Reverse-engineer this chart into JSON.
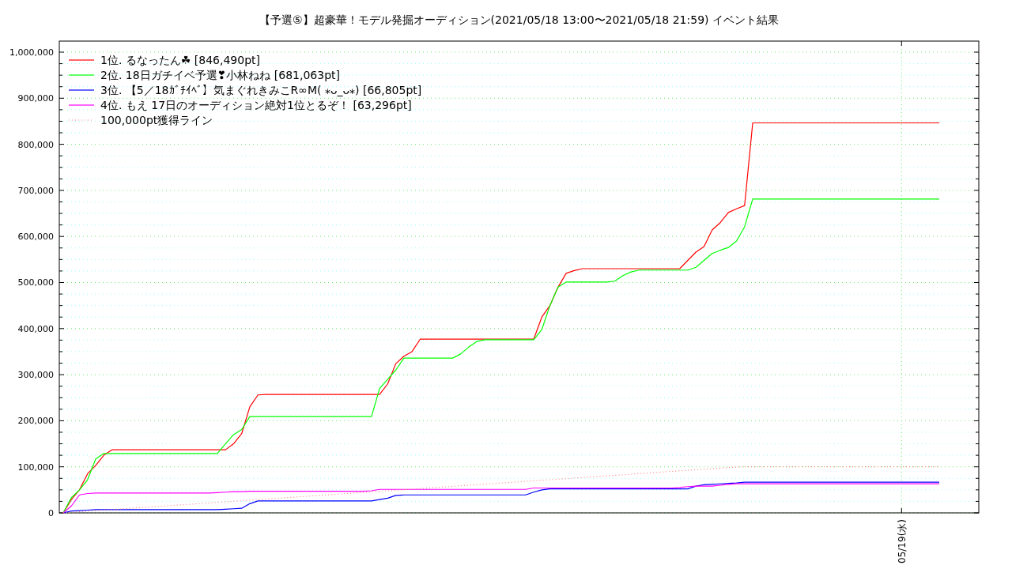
{
  "chart_data": {
    "type": "line",
    "title": "【予選⑤】超豪華！モデル発掘オーディション(2021/05/18 13:00〜2021/05/18 21:59)          イベント結果",
    "annotations": [
      "05/19(水)"
    ],
    "categories": [
      null,
      null,
      null,
      null,
      null,
      null,
      null,
      null,
      null,
      null,
      null,
      null,
      null,
      null,
      null,
      null,
      null,
      null,
      null,
      null,
      null,
      null,
      null,
      null,
      null,
      null,
      null,
      null,
      null,
      null,
      null,
      null,
      null,
      null,
      null,
      null,
      null,
      null,
      null,
      null,
      null,
      null,
      null,
      null,
      null,
      null,
      null,
      null,
      null,
      null,
      null,
      null,
      null,
      null,
      null,
      null,
      null,
      null,
      null,
      null,
      null,
      null,
      null,
      null,
      null,
      null,
      null,
      null,
      null,
      null,
      null,
      null,
      null,
      null,
      null,
      null,
      null,
      null,
      null,
      null,
      null,
      null,
      null,
      null,
      null,
      null,
      null,
      null,
      null,
      null,
      null,
      null,
      null,
      null,
      null,
      null,
      null,
      null,
      null,
      null,
      null,
      null,
      null,
      null,
      null,
      null,
      null,
      null,
      null
    ],
    "ylim": [
      0,
      1024000
    ],
    "yticks": [
      {
        "value": 0,
        "label": "0"
      },
      {
        "value": 25000,
        "label": null
      },
      {
        "value": 50000,
        "label": null
      },
      {
        "value": 75000,
        "label": null
      },
      {
        "value": 100000,
        "label": "100,000"
      },
      {
        "value": 125000,
        "label": null
      },
      {
        "value": 150000,
        "label": null
      },
      {
        "value": 175000,
        "label": null
      },
      {
        "value": 200000,
        "label": "200,000"
      },
      {
        "value": 225000,
        "label": null
      },
      {
        "value": 250000,
        "label": null
      },
      {
        "value": 275000,
        "label": null
      },
      {
        "value": 300000,
        "label": "300,000"
      },
      {
        "value": 325000,
        "label": null
      },
      {
        "value": 350000,
        "label": null
      },
      {
        "value": 375000,
        "label": null
      },
      {
        "value": 400000,
        "label": "400,000"
      },
      {
        "value": 425000,
        "label": null
      },
      {
        "value": 450000,
        "label": null
      },
      {
        "value": 475000,
        "label": null
      },
      {
        "value": 500000,
        "label": "500,000"
      },
      {
        "value": 525000,
        "label": null
      },
      {
        "value": 550000,
        "label": null
      },
      {
        "value": 575000,
        "label": null
      },
      {
        "value": 600000,
        "label": "600,000"
      },
      {
        "value": 625000,
        "label": null
      },
      {
        "value": 650000,
        "label": null
      },
      {
        "value": 675000,
        "label": null
      },
      {
        "value": 700000,
        "label": "700,000"
      },
      {
        "value": 725000,
        "label": null
      },
      {
        "value": 750000,
        "label": null
      },
      {
        "value": 775000,
        "label": null
      },
      {
        "value": 800000,
        "label": "800,000"
      },
      {
        "value": 825000,
        "label": null
      },
      {
        "value": 850000,
        "label": null
      },
      {
        "value": 875000,
        "label": null
      },
      {
        "value": 900000,
        "label": "900,000"
      },
      {
        "value": 925000,
        "label": null
      },
      {
        "value": 950000,
        "label": null
      },
      {
        "value": 975000,
        "label": null
      },
      {
        "value": 1000000,
        "label": "1,000,000"
      }
    ],
    "grid": true,
    "legend": "top left",
    "series": [
      {
        "name": "1位. るなったん☘ [846,490pt]",
        "color": "#ff0000",
        "line_style": "solid",
        "values": [
          0,
          29000,
          50000,
          85000,
          103000,
          125000,
          137000,
          137000,
          137000,
          137000,
          137000,
          137000,
          137000,
          137000,
          137000,
          137000,
          137000,
          137000,
          137000,
          137000,
          137000,
          150000,
          172000,
          230000,
          256000,
          257000,
          257000,
          257000,
          257000,
          257000,
          257000,
          257000,
          257000,
          257000,
          257000,
          257000,
          257000,
          257000,
          257000,
          257000,
          280000,
          324000,
          340000,
          350000,
          377000,
          377000,
          377000,
          377000,
          377000,
          377000,
          377000,
          377000,
          377000,
          377000,
          377000,
          377000,
          377000,
          377000,
          377000,
          425000,
          450000,
          490000,
          520000,
          526000,
          530000,
          530000,
          530000,
          530000,
          530000,
          530000,
          530000,
          530000,
          530000,
          530000,
          530000,
          530000,
          530000,
          548000,
          566000,
          578000,
          614000,
          630000,
          652000,
          660000,
          667000,
          846490,
          846490,
          846490,
          846490,
          846490,
          846490,
          846490,
          846490,
          846490,
          846490,
          846490,
          846490,
          846490,
          846490,
          846490,
          846490,
          846490,
          846490,
          846490,
          846490,
          846490,
          846490,
          846490,
          846490
        ]
      },
      {
        "name": "2位. 18日ガチイベ予選❣小林ねね [681,063pt]",
        "color": "#00ff00",
        "line_style": "solid",
        "values": [
          0,
          33000,
          50000,
          72000,
          117000,
          129000,
          129000,
          129000,
          129000,
          129000,
          129000,
          129000,
          129000,
          129000,
          129000,
          129000,
          129000,
          129000,
          129000,
          129000,
          150000,
          170000,
          181000,
          209000,
          209000,
          209000,
          209000,
          209000,
          209000,
          209000,
          209000,
          209000,
          209000,
          209000,
          209000,
          209000,
          209000,
          209000,
          209000,
          270000,
          290000,
          310000,
          336000,
          336000,
          336000,
          336000,
          336000,
          336000,
          336000,
          345000,
          360000,
          372000,
          376000,
          376000,
          376000,
          376000,
          376000,
          376000,
          376000,
          398000,
          450000,
          490000,
          501000,
          501000,
          501000,
          501000,
          501000,
          501000,
          503000,
          515000,
          523000,
          527000,
          527000,
          527000,
          527000,
          527000,
          527000,
          527000,
          533000,
          548000,
          563000,
          570000,
          576000,
          590000,
          621000,
          681063,
          681063,
          681063,
          681063,
          681063,
          681063,
          681063,
          681063,
          681063,
          681063,
          681063,
          681063,
          681063,
          681063,
          681063,
          681063,
          681063,
          681063,
          681063,
          681063,
          681063,
          681063,
          681063,
          681063
        ]
      },
      {
        "name": "3位. 【5／18ｶﾞﾁｲﾍﾞ】気まぐれきみこR∞M( ⁎ᴗ_ᴗ⁎) [66,805pt]",
        "color": "#0000ff",
        "line_style": "solid",
        "values": [
          0,
          4000,
          5000,
          6000,
          7000,
          7000,
          7000,
          7000,
          7000,
          7000,
          7000,
          7000,
          7000,
          7000,
          7000,
          7000,
          7000,
          7000,
          7000,
          7000,
          8000,
          9000,
          10000,
          20000,
          26000,
          26000,
          26000,
          26000,
          26000,
          26000,
          26000,
          26000,
          26000,
          26000,
          26000,
          26000,
          26000,
          26000,
          26000,
          29000,
          32000,
          38000,
          39000,
          39000,
          39000,
          39000,
          39000,
          39000,
          39000,
          39000,
          39000,
          39000,
          39000,
          39000,
          39000,
          39000,
          39000,
          39000,
          45000,
          50000,
          52000,
          52000,
          52000,
          52000,
          52000,
          52000,
          52000,
          52000,
          52000,
          52000,
          52000,
          52000,
          52000,
          52000,
          52000,
          52000,
          52000,
          52000,
          58000,
          61000,
          62000,
          63000,
          64000,
          65000,
          66805,
          66805,
          66805,
          66805,
          66805,
          66805,
          66805,
          66805,
          66805,
          66805,
          66805,
          66805,
          66805,
          66805,
          66805,
          66805,
          66805,
          66805,
          66805,
          66805,
          66805,
          66805,
          66805,
          66805,
          66805
        ]
      },
      {
        "name": "4位. もえ 17日のオーディション絶対1位とるぞ！ [63,296pt]",
        "color": "#ff00ff",
        "line_style": "solid",
        "values": [
          0,
          15000,
          39000,
          42000,
          43000,
          43000,
          43000,
          43000,
          43000,
          43000,
          43000,
          43000,
          43000,
          43000,
          43000,
          43000,
          43000,
          43000,
          43000,
          44000,
          45000,
          46000,
          46000,
          47000,
          47000,
          47000,
          47000,
          47000,
          47000,
          47000,
          47000,
          47000,
          47000,
          47000,
          47000,
          47000,
          47000,
          47000,
          48000,
          51000,
          51000,
          51000,
          51000,
          51000,
          51000,
          51000,
          51000,
          51000,
          51000,
          51000,
          51000,
          51000,
          51000,
          51000,
          51000,
          51000,
          51000,
          51000,
          54000,
          54000,
          54000,
          54000,
          54000,
          54000,
          54000,
          54000,
          54000,
          54000,
          54000,
          54000,
          54000,
          54000,
          54000,
          54000,
          54000,
          54000,
          55000,
          57000,
          58000,
          58000,
          58000,
          60000,
          62000,
          63296,
          63296,
          63296,
          63296,
          63296,
          63296,
          63296,
          63296,
          63296,
          63296,
          63296,
          63296,
          63296,
          63296,
          63296,
          63296,
          63296,
          63296,
          63296,
          63296,
          63296,
          63296,
          63296,
          63296,
          63296,
          63296
        ]
      },
      {
        "name": "100,000pt獲得ライン",
        "color": "#ff8080",
        "line_style": "dotted",
        "values": [
          0,
          1200,
          2400,
          3600,
          4800,
          6000,
          7200,
          8400,
          9600,
          10800,
          12000,
          13200,
          14400,
          15600,
          16800,
          18000,
          19200,
          20400,
          21600,
          22800,
          24000,
          25200,
          26400,
          27600,
          28800,
          30000,
          31200,
          32400,
          33600,
          34800,
          36000,
          37200,
          38400,
          39600,
          40800,
          42000,
          43200,
          44400,
          45600,
          46800,
          48000,
          49200,
          50400,
          51600,
          52800,
          54000,
          55200,
          56400,
          57600,
          58800,
          60000,
          61200,
          62400,
          63600,
          64800,
          66000,
          67200,
          68400,
          69600,
          70800,
          72000,
          73200,
          74400,
          75600,
          76800,
          78000,
          79200,
          80400,
          81600,
          82800,
          84000,
          85200,
          86400,
          87600,
          88800,
          90000,
          91200,
          92400,
          93600,
          94800,
          96000,
          97200,
          98400,
          99600,
          100000,
          100000,
          100000,
          100000,
          100000,
          100000,
          100000,
          100000,
          100000,
          100000,
          100000,
          100000,
          100000,
          100000,
          100000,
          100000,
          100000,
          100000,
          100000,
          100000,
          100000,
          100000,
          100000,
          100000,
          100000
        ]
      }
    ]
  }
}
